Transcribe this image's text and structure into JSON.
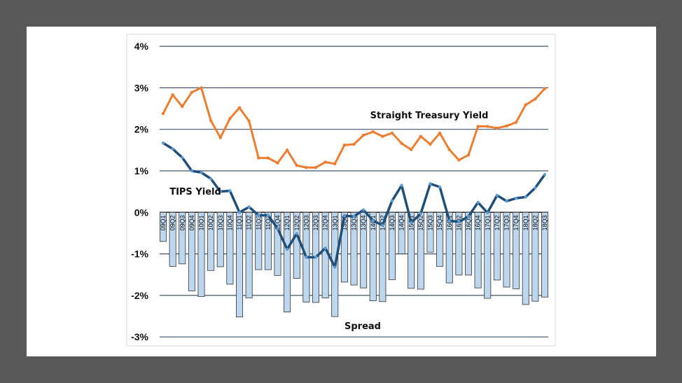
{
  "chart_data": {
    "type": "bar+line",
    "title": "",
    "xlabel": "",
    "ylabel": "",
    "ylim": [
      -3,
      4
    ],
    "yticks": [
      "4%",
      "3%",
      "2%",
      "1%",
      "0%",
      "-1%",
      "-2%",
      "-3%"
    ],
    "ytick_values": [
      4,
      3,
      2,
      1,
      0,
      -1,
      -2,
      -3
    ],
    "grid": "horizontal",
    "categories": [
      "09Q1",
      "09Q2",
      "09Q3",
      "09Q4",
      "10Q1",
      "10Q2",
      "10Q3",
      "10Q4",
      "11Q1",
      "11Q2",
      "11Q3",
      "11Q3",
      "11Q4",
      "12Q1",
      "12Q2",
      "12Q3",
      "12Q3",
      "12Q4",
      "13Q1",
      "13Q2",
      "13Q3",
      "13Q4",
      "14Q1",
      "14Q2",
      "14Q3",
      "14Q4",
      "15Q1",
      "15Q2",
      "15Q3",
      "15Q4",
      "16Q1",
      "16Q2",
      "16Q3",
      "16Q4",
      "17Q1",
      "17Q2",
      "17Q3",
      "17Q4",
      "18Q1",
      "18Q2",
      "18Q3"
    ],
    "series": [
      {
        "name": "Straight Treasury Yield",
        "type": "line",
        "color": "#ed7d31",
        "values": [
          2.38,
          2.83,
          2.55,
          2.89,
          3.0,
          2.21,
          1.8,
          2.26,
          2.52,
          2.2,
          1.31,
          1.31,
          1.19,
          1.5,
          1.13,
          1.08,
          1.08,
          1.21,
          1.17,
          1.62,
          1.64,
          1.86,
          1.94,
          1.83,
          1.91,
          1.66,
          1.51,
          1.83,
          1.64,
          1.91,
          1.51,
          1.26,
          1.38,
          2.07,
          2.07,
          2.03,
          2.08,
          2.17,
          2.59,
          2.73,
          2.98
        ]
      },
      {
        "name": "TIPS Yield",
        "type": "line",
        "color": "#1f4e79",
        "marker_color": "#5b9bd5",
        "values": [
          1.67,
          1.53,
          1.32,
          1.0,
          0.96,
          0.81,
          0.5,
          0.52,
          0.0,
          0.13,
          -0.07,
          -0.07,
          -0.39,
          -0.89,
          -0.51,
          -1.08,
          -1.08,
          -0.86,
          -1.32,
          -0.08,
          -0.1,
          0.06,
          -0.2,
          -0.31,
          0.28,
          0.65,
          -0.25,
          -0.03,
          0.69,
          0.61,
          -0.2,
          -0.23,
          -0.1,
          0.24,
          -0.01,
          0.41,
          0.27,
          0.34,
          0.37,
          0.59,
          0.91
        ]
      },
      {
        "name": "Spread",
        "type": "bar",
        "color": "#bdd7ee",
        "values": [
          -0.7,
          -1.3,
          -1.24,
          -1.89,
          -2.03,
          -1.4,
          -1.31,
          -1.73,
          -2.52,
          -2.06,
          -1.38,
          -1.38,
          -1.52,
          -2.4,
          -1.59,
          -2.16,
          -2.17,
          -2.06,
          -2.51,
          -1.68,
          -1.75,
          -1.82,
          -2.13,
          -2.15,
          -1.62,
          -1.0,
          -1.83,
          -1.85,
          -0.96,
          -1.3,
          -1.7,
          -1.51,
          -1.51,
          -1.82,
          -2.07,
          -1.63,
          -1.8,
          -1.84,
          -2.22,
          -2.14,
          -2.04
        ]
      }
    ],
    "annotations": [
      "Straight Treasury Yield",
      "TIPS Yield",
      "Spread"
    ]
  }
}
